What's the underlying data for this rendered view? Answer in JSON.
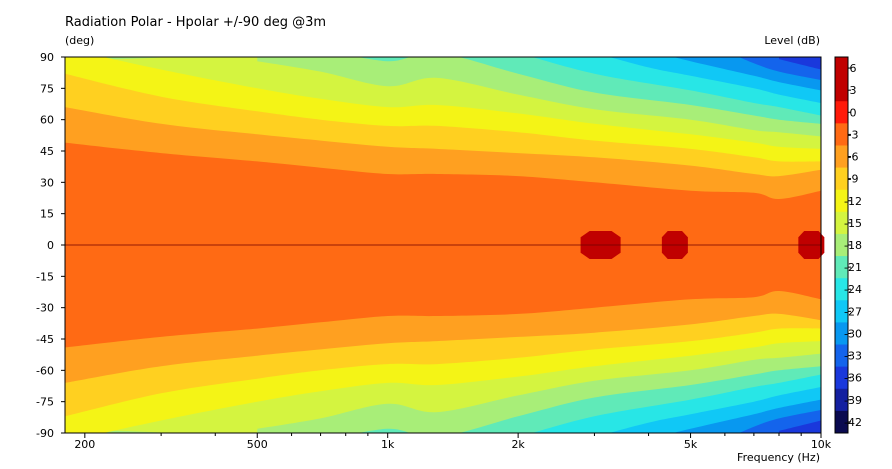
{
  "chart_data": {
    "type": "heatmap",
    "title": "Radiation Polar - Hpolar +/-90 deg @3m",
    "ylabel": "(deg)",
    "xlabel": "Frequency  (Hz)",
    "colorbar_label": "Level  (dB)",
    "x_scale": "log",
    "xlim": [
      180,
      10000
    ],
    "ylim": [
      -90,
      90
    ],
    "x_ticks": [
      {
        "value": 200,
        "label": "200"
      },
      {
        "value": 500,
        "label": "500"
      },
      {
        "value": 1000,
        "label": "1k"
      },
      {
        "value": 2000,
        "label": "2k"
      },
      {
        "value": 5000,
        "label": "5k"
      },
      {
        "value": 10000,
        "label": "10k"
      }
    ],
    "y_ticks": [
      {
        "value": 90,
        "label": "90"
      },
      {
        "value": 75,
        "label": "75"
      },
      {
        "value": 60,
        "label": "60"
      },
      {
        "value": 45,
        "label": "45"
      },
      {
        "value": 30,
        "label": "30"
      },
      {
        "value": 15,
        "label": "15"
      },
      {
        "value": 0,
        "label": "0"
      },
      {
        "value": -15,
        "label": "-15"
      },
      {
        "value": -30,
        "label": "-30"
      },
      {
        "value": -45,
        "label": "-45"
      },
      {
        "value": -60,
        "label": "-60"
      },
      {
        "value": -75,
        "label": "-75"
      },
      {
        "value": -90,
        "label": "-90"
      }
    ],
    "levels": [
      {
        "value": 6,
        "label": "6",
        "color": "#c00000"
      },
      {
        "value": 3,
        "label": "3",
        "color": "#c00000"
      },
      {
        "value": 0,
        "label": "0",
        "color": "#ff1a0a"
      },
      {
        "value": -3,
        "label": "-3",
        "color": "#ff6a14"
      },
      {
        "value": -6,
        "label": "-6",
        "color": "#ffa020"
      },
      {
        "value": -9,
        "label": "-9",
        "color": "#ffd020"
      },
      {
        "value": -12,
        "label": "-12",
        "color": "#f4f416"
      },
      {
        "value": -15,
        "label": "-15",
        "color": "#d4f440"
      },
      {
        "value": -18,
        "label": "-18",
        "color": "#a8ee78"
      },
      {
        "value": -21,
        "label": "-21",
        "color": "#60eab8"
      },
      {
        "value": -24,
        "label": "-24",
        "color": "#28e6e6"
      },
      {
        "value": -27,
        "label": "-27",
        "color": "#10c8f6"
      },
      {
        "value": -30,
        "label": "-30",
        "color": "#0898f0"
      },
      {
        "value": -33,
        "label": "-33",
        "color": "#1464ec"
      },
      {
        "value": -36,
        "label": "-36",
        "color": "#1a38dc"
      },
      {
        "value": -39,
        "label": "-39",
        "color": "#1420a0"
      },
      {
        "value": -42,
        "label": "-42",
        "color": "#0a0a50"
      }
    ],
    "contours": [
      {
        "level": -3,
        "angle": [
          [
            180,
            49
          ],
          [
            300,
            44
          ],
          [
            500,
            40
          ],
          [
            700,
            37
          ],
          [
            1000,
            34
          ],
          [
            1300,
            34
          ],
          [
            2000,
            33
          ],
          [
            3000,
            30
          ],
          [
            5000,
            26
          ],
          [
            7000,
            25
          ],
          [
            8000,
            22
          ],
          [
            10000,
            26
          ]
        ]
      },
      {
        "level": -6,
        "angle": [
          [
            180,
            66
          ],
          [
            300,
            58
          ],
          [
            500,
            53
          ],
          [
            700,
            50
          ],
          [
            1000,
            47
          ],
          [
            1300,
            46
          ],
          [
            2000,
            44
          ],
          [
            3000,
            42
          ],
          [
            5000,
            38
          ],
          [
            7000,
            34
          ],
          [
            8000,
            33
          ],
          [
            10000,
            36
          ]
        ]
      },
      {
        "level": -9,
        "angle": [
          [
            180,
            82
          ],
          [
            300,
            71
          ],
          [
            500,
            64
          ],
          [
            700,
            60
          ],
          [
            1000,
            57
          ],
          [
            1300,
            57
          ],
          [
            2000,
            54
          ],
          [
            3000,
            50
          ],
          [
            5000,
            46
          ],
          [
            7000,
            42
          ],
          [
            8000,
            40
          ],
          [
            10000,
            40
          ]
        ]
      },
      {
        "level": -12,
        "angle": [
          [
            200,
            92
          ],
          [
            300,
            84
          ],
          [
            500,
            75
          ],
          [
            700,
            70
          ],
          [
            1000,
            66
          ],
          [
            1300,
            67
          ],
          [
            2000,
            63
          ],
          [
            3000,
            58
          ],
          [
            5000,
            53
          ],
          [
            7000,
            49
          ],
          [
            8000,
            47
          ],
          [
            10000,
            46
          ]
        ]
      },
      {
        "level": -15,
        "angle": [
          [
            500,
            88
          ],
          [
            700,
            83
          ],
          [
            1000,
            76
          ],
          [
            1300,
            80
          ],
          [
            2000,
            72
          ],
          [
            3000,
            65
          ],
          [
            5000,
            60
          ],
          [
            7000,
            55
          ],
          [
            8000,
            54
          ],
          [
            10000,
            52
          ]
        ]
      },
      {
        "level": -18,
        "angle": [
          [
            700,
            94
          ],
          [
            1000,
            88
          ],
          [
            1300,
            92
          ],
          [
            2000,
            82
          ],
          [
            3000,
            73
          ],
          [
            5000,
            67
          ],
          [
            7000,
            62
          ],
          [
            8000,
            60
          ],
          [
            10000,
            58
          ]
        ]
      },
      {
        "level": -21,
        "angle": [
          [
            2000,
            92
          ],
          [
            3000,
            82
          ],
          [
            5000,
            74
          ],
          [
            7000,
            68
          ],
          [
            8000,
            66
          ],
          [
            10000,
            62
          ]
        ]
      },
      {
        "level": -24,
        "angle": [
          [
            3000,
            92
          ],
          [
            4000,
            85
          ],
          [
            5000,
            81
          ],
          [
            7000,
            75
          ],
          [
            8000,
            72
          ],
          [
            10000,
            68
          ]
        ]
      },
      {
        "level": -27,
        "angle": [
          [
            4000,
            93
          ],
          [
            5000,
            88
          ],
          [
            7000,
            81
          ],
          [
            8000,
            78
          ],
          [
            10000,
            74
          ]
        ]
      },
      {
        "level": -30,
        "angle": [
          [
            6000,
            93
          ],
          [
            7000,
            87
          ],
          [
            8000,
            83
          ],
          [
            10000,
            79
          ]
        ]
      },
      {
        "level": -33,
        "angle": [
          [
            8000,
            89
          ],
          [
            10000,
            84
          ]
        ]
      }
    ],
    "peaks": [
      {
        "freq": 3100,
        "angle": 0,
        "level": 3
      },
      {
        "freq": 4600,
        "angle": 0,
        "level": 3
      },
      {
        "freq": 9500,
        "angle": 0,
        "level": 3
      }
    ]
  }
}
